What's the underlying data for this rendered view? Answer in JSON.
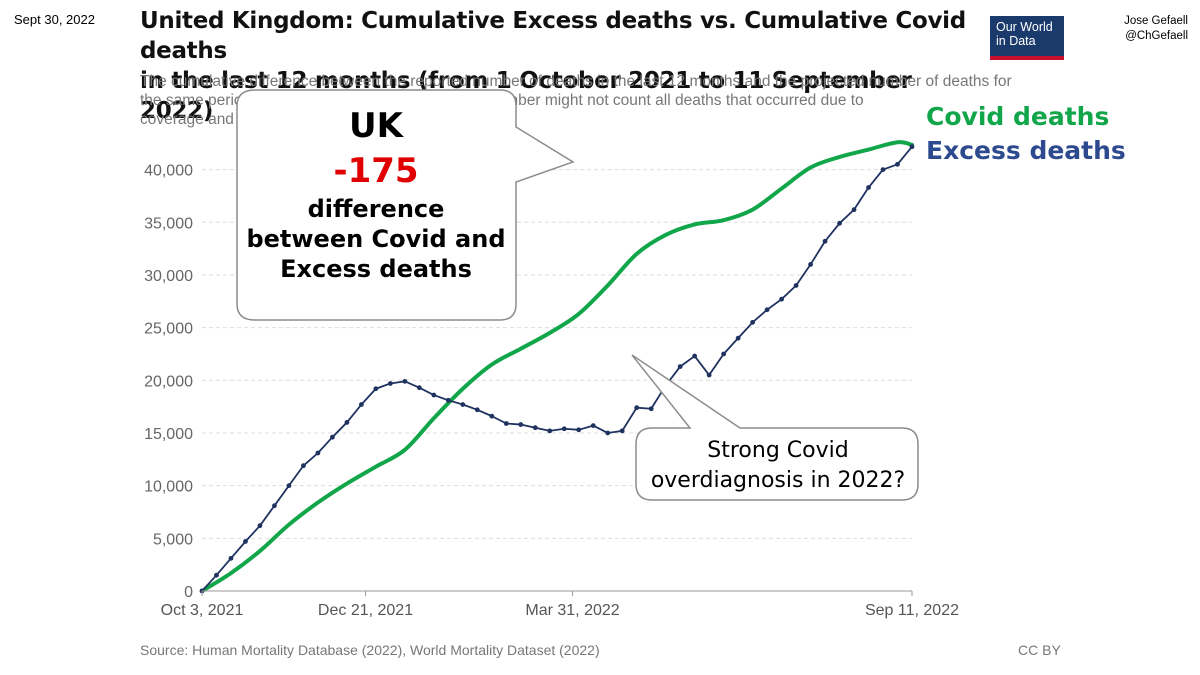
{
  "header": {
    "date": "Sept 30, 2022",
    "title_line1": "United Kingdom: Cumulative Excess deaths vs. Cumulative Covid deaths",
    "title_line2": "in the last 12 months (from 1 October 2021 to 11 September 2022)",
    "logo_line1": "Our World",
    "logo_line2": "in Data",
    "author_name": "Jose Gefaell",
    "author_handle": "@ChGefaell"
  },
  "subtitle": {
    "line1": "The cumulative difference between the reported number of deaths in the last 12 months and the projected number of deaths for",
    "line2": "the same perio                                                   ted number might not count all deaths that occurred due to",
    "line3": "coverage and"
  },
  "callout": {
    "country": "UK",
    "value": "-175",
    "line1": "difference",
    "line2": "between Covid and",
    "line3": "Excess deaths"
  },
  "note": {
    "line1": "Strong Covid",
    "line2": "overdiagnosis in 2022?"
  },
  "footer": {
    "source": "Source: Human Mortality Database (2022), World Mortality Dataset (2022)",
    "license": "CC BY"
  },
  "colors": {
    "covid": "#11a64a",
    "excess": "#1f3260",
    "highlight": "#e10000"
  },
  "chart_data": {
    "type": "line",
    "title": "United Kingdom: Cumulative Excess deaths vs. Cumulative Covid deaths",
    "x_unit": "days since Oct 3, 2021",
    "x_range": [
      0,
      343
    ],
    "xtick_labels": [
      "Oct 3, 2021",
      "Dec 21, 2021",
      "Mar 31, 2022",
      "Sep 11, 2022"
    ],
    "xtick_values": [
      0,
      79,
      179,
      343
    ],
    "ylim": [
      0,
      43000
    ],
    "yticks": [
      0,
      5000,
      10000,
      15000,
      20000,
      25000,
      30000,
      35000,
      40000
    ],
    "ytick_labels": [
      "0",
      "5,000",
      "10,000",
      "15,000",
      "20,000",
      "25,000",
      "30,000",
      "35,000",
      "40,000"
    ],
    "grid": true,
    "series": [
      {
        "name": "Covid deaths",
        "x": [
          0,
          14,
          28,
          42,
          56,
          70,
          84,
          98,
          112,
          126,
          140,
          154,
          168,
          182,
          196,
          210,
          224,
          238,
          252,
          266,
          280,
          294,
          308,
          322,
          336,
          343
        ],
        "values": [
          0,
          1700,
          3800,
          6300,
          8400,
          10200,
          11800,
          13400,
          16400,
          19200,
          21500,
          23000,
          24500,
          26300,
          29000,
          32000,
          33800,
          34800,
          35200,
          36200,
          38200,
          40200,
          41200,
          41900,
          42600,
          42350
        ]
      },
      {
        "name": "Excess deaths",
        "x": [
          0,
          7,
          14,
          21,
          28,
          35,
          42,
          49,
          56,
          63,
          70,
          77,
          84,
          91,
          98,
          105,
          112,
          119,
          126,
          133,
          140,
          147,
          154,
          161,
          168,
          175,
          182,
          189,
          196,
          203,
          210,
          217,
          224,
          231,
          238,
          245,
          252,
          259,
          266,
          273,
          280,
          287,
          294,
          301,
          308,
          315,
          322,
          329,
          336,
          343
        ],
        "values": [
          0,
          1500,
          3100,
          4700,
          6200,
          8100,
          10000,
          11900,
          13100,
          14600,
          16000,
          17700,
          19200,
          19700,
          19900,
          19300,
          18600,
          18100,
          17700,
          17200,
          16600,
          15900,
          15800,
          15500,
          15200,
          15400,
          15300,
          15700,
          15000,
          15200,
          17400,
          17300,
          19500,
          21300,
          22300,
          20500,
          22500,
          24000,
          25500,
          26700,
          27700,
          29000,
          31000,
          33200,
          34900,
          36200,
          38300,
          40000,
          40500,
          42175
        ]
      }
    ]
  }
}
